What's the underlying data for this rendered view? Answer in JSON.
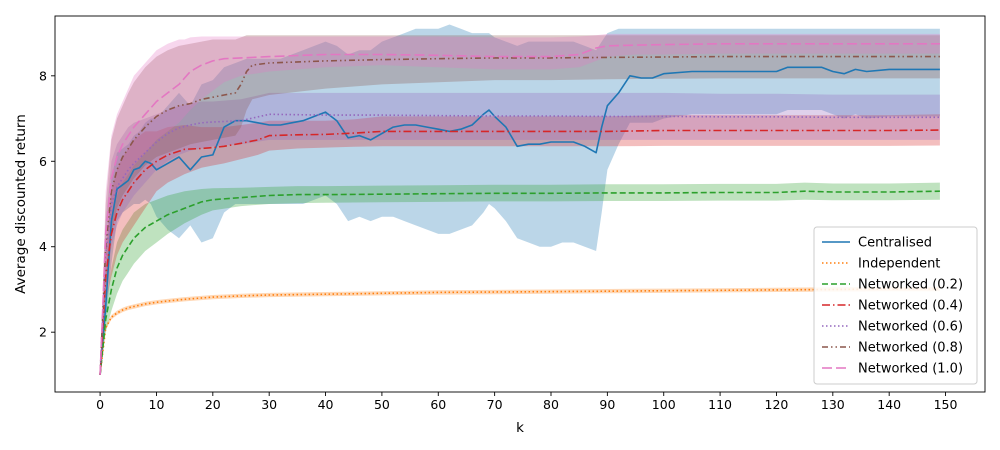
{
  "chart_data": {
    "type": "line",
    "title": "",
    "xlabel": "k",
    "ylabel": "Average discounted return",
    "xlim": [
      -8,
      157
    ],
    "ylim": [
      0.6,
      9.4
    ],
    "xticks": [
      0,
      10,
      20,
      30,
      40,
      50,
      60,
      70,
      80,
      90,
      100,
      110,
      120,
      130,
      140,
      150
    ],
    "yticks": [
      2,
      4,
      6,
      8
    ],
    "grid": false,
    "legend_position": "lower-right",
    "series": [
      {
        "name": "Centralised",
        "color": "#1f77b4",
        "dash": "solid",
        "x": [
          0,
          1,
          2,
          3,
          4,
          5,
          6,
          7,
          8,
          9,
          10,
          12,
          14,
          16,
          18,
          20,
          22,
          24,
          26,
          28,
          30,
          32,
          34,
          36,
          38,
          40,
          42,
          44,
          46,
          48,
          50,
          52,
          54,
          56,
          58,
          60,
          62,
          64,
          66,
          68,
          69,
          70,
          72,
          74,
          76,
          78,
          80,
          82,
          84,
          86,
          88,
          89,
          90,
          92,
          94,
          96,
          98,
          100,
          105,
          110,
          115,
          120,
          122,
          125,
          128,
          130,
          132,
          134,
          136,
          140,
          145,
          149
        ],
        "y": [
          1.0,
          2.6,
          4.6,
          5.35,
          5.45,
          5.55,
          5.8,
          5.85,
          6.0,
          5.95,
          5.8,
          5.95,
          6.1,
          5.8,
          6.1,
          6.15,
          6.8,
          6.95,
          6.95,
          6.9,
          6.85,
          6.85,
          6.9,
          6.95,
          7.05,
          7.15,
          6.95,
          6.55,
          6.6,
          6.5,
          6.65,
          6.8,
          6.85,
          6.85,
          6.8,
          6.75,
          6.7,
          6.75,
          6.85,
          7.1,
          7.2,
          7.05,
          6.8,
          6.35,
          6.4,
          6.4,
          6.45,
          6.45,
          6.45,
          6.35,
          6.2,
          6.8,
          7.3,
          7.6,
          8.0,
          7.95,
          7.95,
          8.05,
          8.1,
          8.1,
          8.1,
          8.1,
          8.2,
          8.2,
          8.2,
          8.1,
          8.05,
          8.15,
          8.1,
          8.15,
          8.15,
          8.15
        ],
        "band_lower": [
          1.0,
          2.2,
          3.6,
          4.6,
          4.8,
          4.9,
          5.0,
          5.0,
          5.1,
          5.0,
          4.7,
          4.4,
          4.2,
          4.5,
          4.1,
          4.2,
          4.8,
          5.0,
          5.0,
          5.0,
          5.0,
          5.0,
          5.0,
          5.0,
          5.1,
          5.2,
          5.0,
          4.6,
          4.7,
          4.6,
          4.7,
          4.7,
          4.6,
          4.5,
          4.4,
          4.3,
          4.3,
          4.4,
          4.5,
          4.8,
          5.0,
          4.9,
          4.6,
          4.2,
          4.1,
          4.0,
          4.0,
          4.1,
          4.1,
          4.0,
          3.9,
          4.8,
          5.8,
          6.4,
          6.9,
          6.9,
          6.9,
          7.0,
          7.1,
          7.1,
          7.1,
          7.1,
          7.2,
          7.2,
          7.2,
          7.1,
          7.0,
          7.1,
          7.0,
          7.05,
          7.05,
          7.05
        ],
        "band_upper": [
          1.0,
          3.2,
          5.6,
          6.2,
          6.3,
          6.4,
          6.6,
          6.7,
          6.9,
          7.0,
          7.0,
          7.3,
          7.6,
          7.3,
          7.8,
          7.9,
          8.2,
          8.3,
          8.4,
          8.4,
          8.4,
          8.4,
          8.5,
          8.6,
          8.7,
          8.8,
          8.7,
          8.5,
          8.6,
          8.6,
          8.8,
          8.9,
          9.0,
          9.1,
          9.1,
          9.1,
          9.2,
          9.1,
          9.0,
          9.0,
          9.0,
          8.9,
          8.8,
          8.7,
          8.8,
          8.8,
          8.8,
          8.8,
          8.8,
          8.7,
          8.6,
          8.8,
          9.0,
          9.1,
          9.1,
          9.1,
          9.1,
          9.1,
          9.1,
          9.1,
          9.1,
          9.1,
          9.1,
          9.1,
          9.1,
          9.1,
          9.1,
          9.1,
          9.1,
          9.1,
          9.1,
          9.1
        ]
      },
      {
        "name": "Independent",
        "color": "#ff7f0e",
        "dash": "1.5,2.5",
        "x": [
          0,
          1,
          2,
          3,
          4,
          5,
          6,
          8,
          10,
          12,
          15,
          20,
          25,
          30,
          40,
          50,
          60,
          70,
          80,
          90,
          100,
          110,
          120,
          130,
          140,
          149
        ],
        "y": [
          1.0,
          2.1,
          2.35,
          2.45,
          2.52,
          2.57,
          2.6,
          2.66,
          2.7,
          2.73,
          2.77,
          2.82,
          2.85,
          2.87,
          2.89,
          2.91,
          2.93,
          2.94,
          2.95,
          2.96,
          2.97,
          2.98,
          2.99,
          3.0,
          3.01,
          3.01
        ],
        "band_lower": [
          1.0,
          2.05,
          2.3,
          2.4,
          2.47,
          2.52,
          2.55,
          2.61,
          2.65,
          2.68,
          2.72,
          2.77,
          2.8,
          2.82,
          2.84,
          2.86,
          2.88,
          2.89,
          2.9,
          2.91,
          2.92,
          2.93,
          2.94,
          2.95,
          2.96,
          2.96
        ],
        "band_upper": [
          1.0,
          2.15,
          2.4,
          2.5,
          2.57,
          2.62,
          2.65,
          2.71,
          2.75,
          2.78,
          2.82,
          2.87,
          2.9,
          2.92,
          2.94,
          2.96,
          2.98,
          2.99,
          3.0,
          3.01,
          3.02,
          3.03,
          3.04,
          3.05,
          3.06,
          3.06
        ]
      },
      {
        "name": "Networked (0.2)",
        "color": "#2ca02c",
        "dash": "6,3",
        "x": [
          0,
          1,
          2,
          3,
          4,
          5,
          6,
          8,
          10,
          12,
          15,
          18,
          20,
          25,
          30,
          35,
          40,
          50,
          60,
          70,
          80,
          90,
          100,
          110,
          120,
          125,
          130,
          140,
          149
        ],
        "y": [
          1.0,
          2.3,
          3.0,
          3.5,
          3.8,
          4.0,
          4.2,
          4.45,
          4.6,
          4.75,
          4.9,
          5.05,
          5.1,
          5.15,
          5.2,
          5.22,
          5.22,
          5.23,
          5.24,
          5.25,
          5.25,
          5.26,
          5.26,
          5.27,
          5.27,
          5.3,
          5.28,
          5.28,
          5.3
        ],
        "band_lower": [
          1.0,
          2.0,
          2.5,
          2.9,
          3.2,
          3.4,
          3.6,
          3.9,
          4.1,
          4.3,
          4.55,
          4.75,
          4.85,
          4.95,
          5.0,
          5.02,
          5.03,
          5.04,
          5.05,
          5.06,
          5.06,
          5.07,
          5.07,
          5.08,
          5.08,
          5.1,
          5.09,
          5.09,
          5.1
        ],
        "band_upper": [
          1.0,
          2.6,
          3.5,
          4.1,
          4.4,
          4.6,
          4.8,
          5.0,
          5.1,
          5.2,
          5.3,
          5.35,
          5.37,
          5.38,
          5.4,
          5.42,
          5.42,
          5.43,
          5.44,
          5.45,
          5.45,
          5.46,
          5.46,
          5.47,
          5.47,
          5.5,
          5.48,
          5.48,
          5.5
        ]
      },
      {
        "name": "Networked (0.4)",
        "color": "#d62728",
        "dash": "8,3,1.5,3",
        "x": [
          0,
          1,
          2,
          3,
          4,
          5,
          6,
          8,
          10,
          12,
          15,
          18,
          20,
          22,
          25,
          28,
          30,
          35,
          40,
          45,
          50,
          60,
          70,
          80,
          90,
          100,
          110,
          120,
          130,
          140,
          149
        ],
        "y": [
          1.0,
          3.3,
          4.3,
          4.8,
          5.1,
          5.3,
          5.5,
          5.8,
          6.0,
          6.15,
          6.28,
          6.3,
          6.32,
          6.35,
          6.42,
          6.5,
          6.6,
          6.62,
          6.63,
          6.66,
          6.7,
          6.7,
          6.7,
          6.7,
          6.7,
          6.72,
          6.72,
          6.72,
          6.72,
          6.72,
          6.73
        ],
        "band_lower": [
          1.0,
          2.7,
          3.3,
          3.8,
          4.1,
          4.3,
          4.5,
          4.9,
          5.3,
          5.5,
          5.7,
          5.85,
          5.9,
          5.95,
          6.05,
          6.15,
          6.25,
          6.3,
          6.32,
          6.34,
          6.35,
          6.35,
          6.35,
          6.35,
          6.35,
          6.36,
          6.36,
          6.36,
          6.36,
          6.36,
          6.37
        ],
        "band_upper": [
          1.0,
          3.9,
          5.3,
          5.8,
          6.1,
          6.3,
          6.5,
          6.7,
          6.7,
          6.8,
          6.85,
          6.8,
          6.8,
          6.8,
          6.85,
          6.9,
          6.95,
          6.95,
          6.95,
          6.98,
          7.05,
          7.05,
          7.05,
          7.05,
          7.05,
          7.08,
          7.08,
          7.08,
          7.08,
          7.08,
          7.1
        ]
      },
      {
        "name": "Networked (0.6)",
        "color": "#9467bd",
        "dash": "1.5,2.5",
        "x": [
          0,
          1,
          2,
          3,
          4,
          5,
          6,
          8,
          10,
          12,
          14,
          16,
          18,
          20,
          25,
          30,
          40,
          50,
          60,
          70,
          80,
          90,
          100,
          110,
          120,
          130,
          140,
          149
        ],
        "y": [
          1.0,
          3.8,
          5.0,
          5.4,
          5.6,
          5.8,
          5.95,
          6.2,
          6.45,
          6.65,
          6.78,
          6.85,
          6.9,
          6.92,
          6.95,
          7.1,
          7.08,
          7.08,
          7.07,
          7.06,
          7.06,
          7.05,
          7.05,
          7.04,
          7.04,
          7.03,
          7.03,
          7.03
        ],
        "band_lower": [
          1.0,
          3.0,
          4.0,
          4.5,
          4.8,
          5.0,
          5.2,
          5.5,
          5.8,
          6.0,
          6.15,
          6.25,
          6.3,
          6.35,
          6.4,
          6.5,
          6.5,
          6.5,
          6.5,
          6.5,
          6.5,
          6.5,
          6.5,
          6.5,
          6.5,
          6.5,
          6.5,
          6.5
        ],
        "band_upper": [
          1.0,
          4.6,
          6.0,
          6.4,
          6.6,
          6.8,
          6.9,
          7.0,
          7.1,
          7.2,
          7.3,
          7.35,
          7.4,
          7.4,
          7.45,
          7.6,
          7.6,
          7.6,
          7.6,
          7.6,
          7.6,
          7.6,
          7.6,
          7.58,
          7.58,
          7.56,
          7.56,
          7.56
        ]
      },
      {
        "name": "Networked (0.8)",
        "color": "#8c564b",
        "dash": "6,3,1.5,3,1.5,3",
        "x": [
          0,
          1,
          2,
          3,
          4,
          5,
          6,
          8,
          10,
          12,
          14,
          16,
          18,
          20,
          22,
          24,
          25,
          26,
          27,
          30,
          40,
          50,
          60,
          70,
          80,
          90,
          100,
          110,
          120,
          130,
          140,
          149
        ],
        "y": [
          1.0,
          4.0,
          5.3,
          5.8,
          6.1,
          6.3,
          6.5,
          6.8,
          7.05,
          7.2,
          7.3,
          7.35,
          7.45,
          7.5,
          7.55,
          7.6,
          7.8,
          8.1,
          8.25,
          8.3,
          8.35,
          8.38,
          8.4,
          8.42,
          8.42,
          8.43,
          8.44,
          8.45,
          8.45,
          8.45,
          8.45,
          8.45
        ],
        "band_lower": [
          1.0,
          3.0,
          4.3,
          4.9,
          5.2,
          5.4,
          5.6,
          5.9,
          6.1,
          6.2,
          6.3,
          6.4,
          6.45,
          6.5,
          6.55,
          6.6,
          6.8,
          7.2,
          7.45,
          7.55,
          7.7,
          7.8,
          7.85,
          7.9,
          7.9,
          7.92,
          7.93,
          7.94,
          7.94,
          7.94,
          7.94,
          7.94
        ],
        "band_upper": [
          1.0,
          5.0,
          6.5,
          7.0,
          7.3,
          7.6,
          7.85,
          8.2,
          8.45,
          8.6,
          8.7,
          8.75,
          8.8,
          8.85,
          8.85,
          8.85,
          8.9,
          8.95,
          8.95,
          8.95,
          8.95,
          8.95,
          8.95,
          8.95,
          8.95,
          8.95,
          8.95,
          8.95,
          8.95,
          8.95,
          8.95,
          8.95
        ]
      },
      {
        "name": "Networked (1.0)",
        "color": "#e377c2",
        "dash": "10,4",
        "x": [
          0,
          1,
          2,
          3,
          4,
          5,
          6,
          8,
          10,
          12,
          14,
          15,
          16,
          18,
          20,
          22,
          25,
          30,
          40,
          50,
          60,
          70,
          80,
          85,
          88,
          90,
          95,
          100,
          110,
          120,
          130,
          140,
          149
        ],
        "y": [
          1.0,
          4.3,
          5.6,
          6.1,
          6.4,
          6.6,
          6.8,
          7.1,
          7.4,
          7.6,
          7.8,
          7.95,
          8.1,
          8.25,
          8.35,
          8.4,
          8.42,
          8.45,
          8.5,
          8.5,
          8.48,
          8.45,
          8.45,
          8.5,
          8.65,
          8.7,
          8.72,
          8.73,
          8.75,
          8.75,
          8.75,
          8.75,
          8.75
        ],
        "band_lower": [
          1.0,
          3.3,
          4.6,
          5.2,
          5.5,
          5.7,
          5.9,
          6.2,
          6.5,
          6.7,
          6.9,
          7.05,
          7.2,
          7.45,
          7.65,
          7.85,
          8.0,
          8.1,
          8.2,
          8.25,
          8.2,
          8.15,
          8.15,
          8.2,
          8.35,
          8.45,
          8.5,
          8.5,
          8.52,
          8.52,
          8.52,
          8.52,
          8.52
        ],
        "band_upper": [
          1.0,
          5.3,
          6.6,
          7.1,
          7.4,
          7.7,
          8.0,
          8.3,
          8.6,
          8.75,
          8.85,
          8.85,
          8.9,
          8.92,
          8.92,
          8.92,
          8.92,
          8.92,
          8.92,
          8.92,
          8.92,
          8.9,
          8.9,
          8.92,
          8.95,
          8.98,
          8.98,
          8.98,
          8.98,
          8.98,
          8.98,
          8.98,
          8.98
        ]
      }
    ]
  }
}
